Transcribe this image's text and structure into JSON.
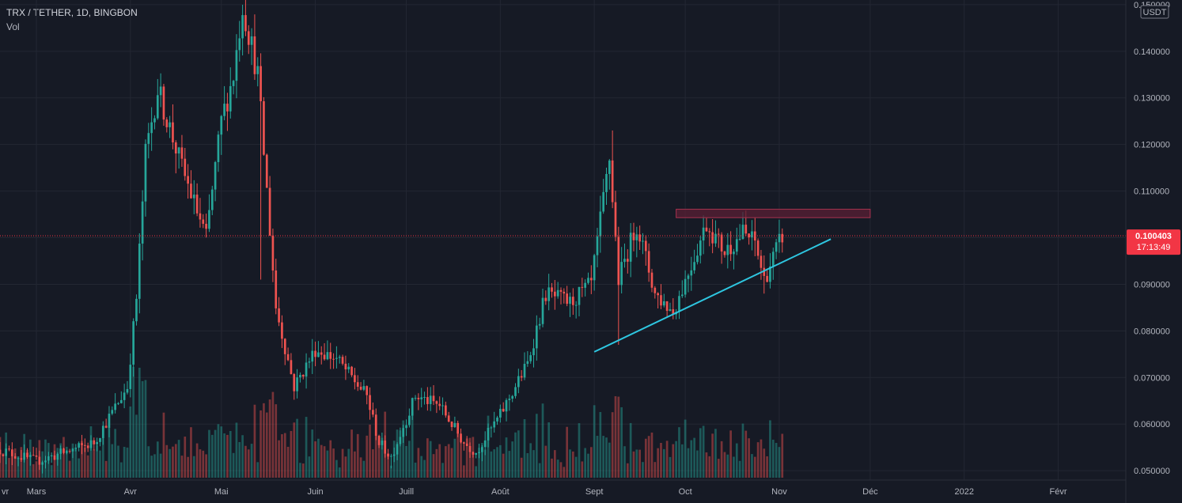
{
  "header": {
    "symbol_title": "TRX / TETHER, 1D, BINGBON",
    "volume_label": "Vol"
  },
  "axis": {
    "currency_badge": "USDT",
    "last_price": "0.100403",
    "countdown": "17:13:49"
  },
  "colors": {
    "background": "#161a25",
    "grid": "#232733",
    "up": "#26a69a",
    "down": "#ef5350",
    "trendline": "#2ec6e0",
    "resistance_fill": "#5a1f34",
    "resistance_border": "#a8324f",
    "price_label": "#f23645"
  },
  "chart_data": {
    "type": "candlestick",
    "x_tick_labels": [
      "vr",
      "Mars",
      "Avr",
      "Mai",
      "Juin",
      "Juill",
      "Août",
      "Sept",
      "Oct",
      "Nov",
      "Déc",
      "2022",
      "Févr"
    ],
    "y_tick_labels": [
      "0.150000",
      "0.140000",
      "0.130000",
      "0.120000",
      "0.110000",
      "0.100000",
      "0.090000",
      "0.080000",
      "0.070000",
      "0.060000",
      "0.050000"
    ],
    "ylim": [
      0.0485,
      0.151
    ],
    "last_price": 0.100403,
    "key_points": [
      {
        "x": "2021-05-08",
        "y": 0.155
      },
      {
        "x": "2021-06-26",
        "y": 0.0505
      },
      {
        "x": "2021-09-06",
        "y": 0.1215
      },
      {
        "x": "2021-09-09",
        "y": 0.077
      },
      {
        "x": "2021-10-27",
        "y": 0.088
      },
      {
        "x": "2021-11-02",
        "y": 0.1004
      }
    ],
    "resistance_zone": {
      "x_start": "2021-09-28",
      "x_end": "2021-12-01",
      "y_low": 0.1043,
      "y_high": 0.1061
    },
    "trendline": {
      "x_start": "2021-09-01",
      "y_start": 0.0755,
      "x_end": "2021-11-18",
      "y_end": 0.0997
    },
    "grid": true,
    "legend": "top-left"
  }
}
